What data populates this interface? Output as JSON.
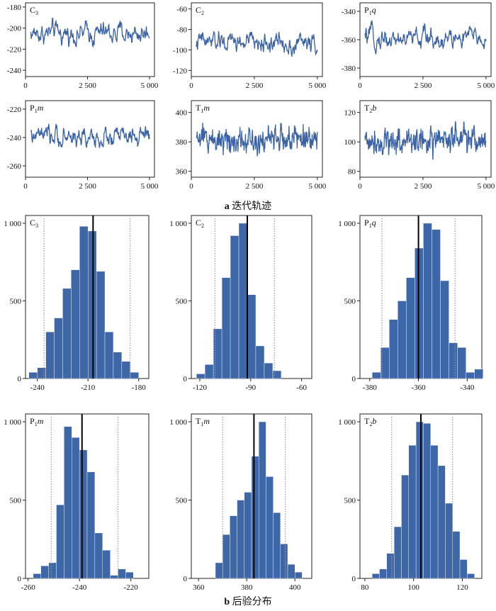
{
  "captions": {
    "a_letter": "a",
    "a_text": "迭代轨迹",
    "b_letter": "b",
    "b_text": "后验分布"
  },
  "colors": {
    "series": "#3a62a5",
    "hist_fill": "#3e67a8",
    "axis": "#222222",
    "ci_line": "#999999"
  },
  "chart_data": [
    {
      "type": "line",
      "panel": "trace",
      "label_main": "C",
      "label_sub": "3",
      "label_rest": "",
      "xlim": [
        0,
        5200
      ],
      "xticks": [
        0,
        2500,
        5000
      ],
      "xtick_labels": [
        "0",
        "2 500",
        "5 000"
      ],
      "ylim": [
        -246,
        -176
      ],
      "yticks": [
        -180,
        -200,
        -220,
        -240
      ],
      "mean": -205,
      "sd": 11,
      "volatility": 0.45,
      "n": 300
    },
    {
      "type": "line",
      "panel": "trace",
      "label_main": "C",
      "label_sub": "2",
      "label_rest": "",
      "xlim": [
        0,
        5200
      ],
      "xticks": [
        0,
        2500,
        5000
      ],
      "xtick_labels": [
        "0",
        "2 500",
        "5 000"
      ],
      "ylim": [
        -126,
        -54
      ],
      "yticks": [
        -60,
        -80,
        -100,
        -120
      ],
      "mean": -93,
      "sd": 11,
      "volatility": 0.45,
      "n": 300
    },
    {
      "type": "line",
      "panel": "trace",
      "label_main": "P",
      "label_sub": "1",
      "label_rest": "q",
      "xlim": [
        0,
        5200
      ],
      "xticks": [
        0,
        2500,
        5000
      ],
      "xtick_labels": [
        "0",
        "2 500",
        "5 000"
      ],
      "ylim": [
        -386,
        -334
      ],
      "yticks": [
        -340,
        -360,
        -380
      ],
      "mean": -359,
      "sd": 8,
      "volatility": 0.45,
      "n": 300
    },
    {
      "type": "line",
      "panel": "trace",
      "label_main": "P",
      "label_sub": "1",
      "label_rest": "m",
      "xlim": [
        0,
        5200
      ],
      "xticks": [
        0,
        2500,
        5000
      ],
      "xtick_labels": [
        "0",
        "2 500",
        "5 000"
      ],
      "ylim": [
        -268,
        -214
      ],
      "yticks": [
        -220,
        -240,
        -260
      ],
      "mean": -240,
      "sd": 8,
      "volatility": 0.45,
      "n": 300
    },
    {
      "type": "line",
      "panel": "trace",
      "label_main": "T",
      "label_sub": "1",
      "label_rest": "m",
      "xlim": [
        0,
        5200
      ],
      "xticks": [
        0,
        2500,
        5000
      ],
      "xtick_labels": [
        "0",
        "2 500",
        "5 000"
      ],
      "ylim": [
        356,
        408
      ],
      "yticks": [
        360,
        380,
        400
      ],
      "mean": 382,
      "sd": 8,
      "volatility": 0.95,
      "n": 420
    },
    {
      "type": "line",
      "panel": "trace",
      "label_main": "T",
      "label_sub": "2",
      "label_rest": "b",
      "xlim": [
        0,
        5200
      ],
      "xticks": [
        0,
        2500,
        5000
      ],
      "xtick_labels": [
        "0",
        "2 500",
        "5 000"
      ],
      "ylim": [
        76,
        128
      ],
      "yticks": [
        80,
        100,
        120
      ],
      "mean": 101,
      "sd": 8,
      "volatility": 0.95,
      "n": 420
    },
    {
      "type": "bar",
      "panel": "hist",
      "label_main": "C",
      "label_sub": "3",
      "label_rest": "",
      "xlim": [
        -247,
        -174
      ],
      "xticks": [
        -240,
        -210,
        -180
      ],
      "xtick_labels": [
        "-240",
        "-210",
        "-180"
      ],
      "ylim": [
        0,
        1050
      ],
      "yticks": [
        0,
        500,
        1000
      ],
      "ytick_labels": [
        "0",
        "500",
        "1 000"
      ],
      "bin_start": -245,
      "bin_width": 5,
      "values": [
        40,
        70,
        300,
        390,
        580,
        700,
        980,
        950,
        690,
        300,
        170,
        110,
        40
      ],
      "mean": -207,
      "ci": [
        -236,
        -185
      ]
    },
    {
      "type": "bar",
      "panel": "hist",
      "label_main": "C",
      "label_sub": "2",
      "label_rest": "",
      "xlim": [
        -125,
        -54
      ],
      "xticks": [
        -120,
        -90,
        -60
      ],
      "xtick_labels": [
        "-120",
        "-90",
        "-60"
      ],
      "ylim": [
        0,
        1050
      ],
      "yticks": [
        0,
        500,
        1000
      ],
      "ytick_labels": [
        "0",
        "500",
        "1 000"
      ],
      "bin_start": -122,
      "bin_width": 5,
      "values": [
        30,
        90,
        320,
        650,
        920,
        1000,
        540,
        210,
        100,
        50
      ],
      "mean": -92,
      "ci": [
        -111,
        -76
      ]
    },
    {
      "type": "bar",
      "panel": "hist",
      "label_main": "P",
      "label_sub": "1",
      "label_rest": "q",
      "xlim": [
        -384,
        -334
      ],
      "xticks": [
        -380,
        -360,
        -340
      ],
      "xtick_labels": [
        "-380",
        "-360",
        "-340"
      ],
      "ylim": [
        0,
        1050
      ],
      "yticks": [
        0,
        500,
        1000
      ],
      "ytick_labels": [
        "0",
        "500",
        "1 000"
      ],
      "bin_start": -379,
      "bin_width": 3.5,
      "values": [
        40,
        200,
        380,
        500,
        650,
        840,
        1000,
        960,
        630,
        230,
        200,
        40,
        60
      ],
      "mean": -360,
      "ci": [
        -375,
        -345
      ]
    },
    {
      "type": "bar",
      "panel": "hist",
      "label_main": "P",
      "label_sub": "1",
      "label_rest": "m",
      "xlim": [
        -261,
        -213
      ],
      "xticks": [
        -260,
        -240,
        -220
      ],
      "xtick_labels": [
        "-260",
        "-240",
        "-220"
      ],
      "ylim": [
        0,
        1050
      ],
      "yticks": [
        0,
        500,
        1000
      ],
      "ytick_labels": [
        "0",
        "500",
        "1 000"
      ],
      "bin_start": -258,
      "bin_width": 3,
      "values": [
        30,
        80,
        100,
        470,
        970,
        900,
        820,
        680,
        290,
        180,
        20,
        60,
        40
      ],
      "mean": -239,
      "ci": [
        -251,
        -225
      ]
    },
    {
      "type": "bar",
      "panel": "hist",
      "label_main": "T",
      "label_sub": "1",
      "label_rest": "m",
      "xlim": [
        357,
        407
      ],
      "xticks": [
        360,
        380,
        400
      ],
      "xtick_labels": [
        "360",
        "380",
        "400"
      ],
      "ylim": [
        0,
        1050
      ],
      "yticks": [
        0,
        500,
        1000
      ],
      "ytick_labels": [
        "0",
        "500",
        "1 000"
      ],
      "bin_start": 367,
      "bin_width": 3,
      "values": [
        100,
        280,
        400,
        500,
        550,
        780,
        1000,
        650,
        420,
        220,
        90,
        40
      ],
      "mean": 383,
      "ci": [
        370,
        396
      ]
    },
    {
      "type": "bar",
      "panel": "hist",
      "label_main": "T",
      "label_sub": "2",
      "label_rest": "b",
      "xlim": [
        78,
        128
      ],
      "xticks": [
        80,
        100,
        120
      ],
      "xtick_labels": [
        "80",
        "100",
        "120"
      ],
      "ylim": [
        0,
        1050
      ],
      "yticks": [
        0,
        500,
        1000
      ],
      "ytick_labels": [
        "0",
        "500",
        "1 000"
      ],
      "bin_start": 83,
      "bin_width": 3,
      "values": [
        30,
        60,
        160,
        330,
        660,
        850,
        1000,
        990,
        850,
        720,
        480,
        300,
        120,
        30
      ],
      "mean": 103,
      "ci": [
        91,
        116
      ]
    }
  ]
}
